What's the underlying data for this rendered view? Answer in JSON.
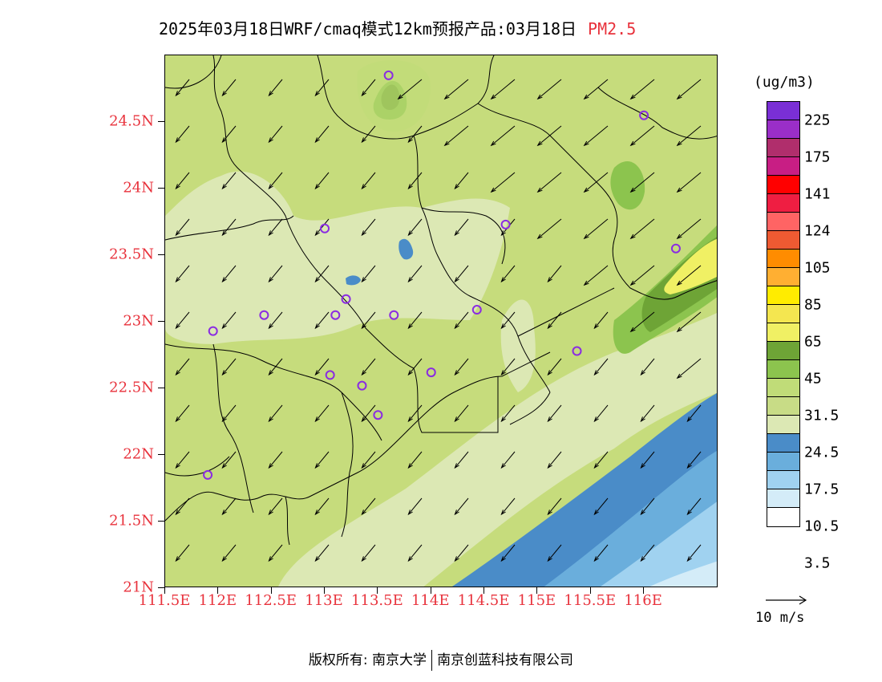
{
  "title": {
    "main": "2025年03月18日WRF/cmaq模式12km预报产品:03月18日",
    "pollutant": "PM2.5"
  },
  "axes": {
    "lat_labels": [
      "24.5N",
      "24N",
      "23.5N",
      "23N",
      "22.5N",
      "22N",
      "21.5N",
      "21N"
    ],
    "lat_values": [
      24.5,
      24.0,
      23.5,
      23.0,
      22.5,
      22.0,
      21.5,
      21.0
    ],
    "lon_labels": [
      "111.5E",
      "112E",
      "112.5E",
      "113E",
      "113.5E",
      "114E",
      "114.5E",
      "115E",
      "115.5E",
      "116E"
    ],
    "lon_values": [
      111.5,
      112.0,
      112.5,
      113.0,
      113.5,
      114.0,
      114.5,
      115.0,
      115.5,
      116.0
    ],
    "lat_range": [
      21.0,
      25.0
    ],
    "lon_range": [
      111.5,
      116.7
    ]
  },
  "legend": {
    "unit": "(ug/m3)",
    "labels": [
      "225",
      "175",
      "141",
      "124",
      "105",
      "85",
      "65",
      "45",
      "31.5",
      "24.5",
      "17.5",
      "10.5",
      "3.5"
    ],
    "colors": [
      "#7a2fd6",
      "#9a2ec8",
      "#b02e6c",
      "#c81e84",
      "#ff0000",
      "#ef1e42",
      "#ff3c50",
      "#ff6464",
      "#ee5a32",
      "#ff8c00",
      "#ffaf32",
      "#ffc83c",
      "#ffec00",
      "#f4e650",
      "#f0f064",
      "#6ea436",
      "#8cc44e",
      "#c0dc78",
      "#c8dc86",
      "#dce8b4",
      "#4a8cc8",
      "#6aaedc",
      "#a0d2f0",
      "#d4ecf8",
      "#ffffff"
    ]
  },
  "wind_scale": {
    "label": "10 m/s"
  },
  "stations": [
    {
      "lon": 113.6,
      "lat": 24.85
    },
    {
      "lon": 116.0,
      "lat": 24.55
    },
    {
      "lon": 113.0,
      "lat": 23.7
    },
    {
      "lon": 114.7,
      "lat": 23.73
    },
    {
      "lon": 116.3,
      "lat": 23.55
    },
    {
      "lon": 113.2,
      "lat": 23.17
    },
    {
      "lon": 112.43,
      "lat": 23.05
    },
    {
      "lon": 113.1,
      "lat": 23.05
    },
    {
      "lon": 113.65,
      "lat": 23.05
    },
    {
      "lon": 114.43,
      "lat": 23.09
    },
    {
      "lon": 111.95,
      "lat": 22.93
    },
    {
      "lon": 115.37,
      "lat": 22.78
    },
    {
      "lon": 113.05,
      "lat": 22.6
    },
    {
      "lon": 113.35,
      "lat": 22.52
    },
    {
      "lon": 114.0,
      "lat": 22.62
    },
    {
      "lon": 113.5,
      "lat": 22.3
    },
    {
      "lon": 111.9,
      "lat": 21.85
    }
  ],
  "footer": {
    "left": "版权所有: 南京大学",
    "right": "南京创蓝科技有限公司"
  }
}
